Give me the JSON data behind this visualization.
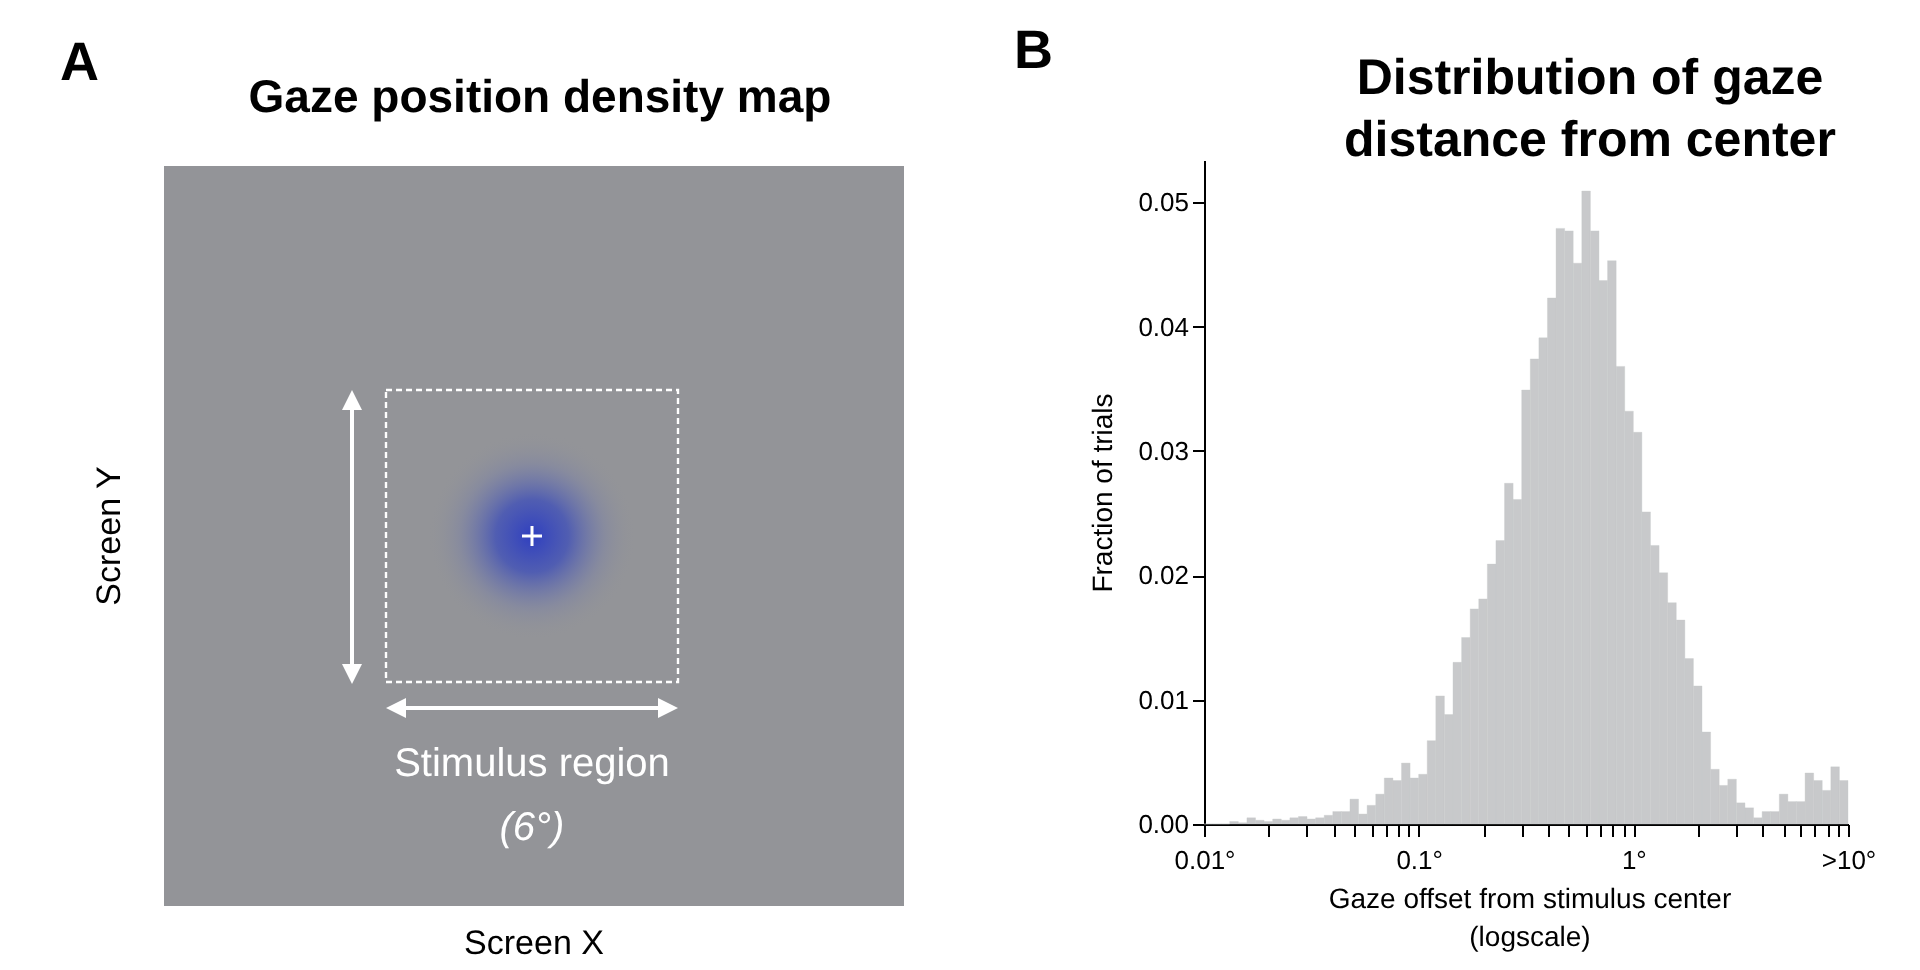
{
  "chart_data": [
    {
      "type": "other",
      "title": "Gaze position density map",
      "xlabel": "Screen X",
      "ylabel": "Screen Y",
      "annotations": [
        "A",
        "Stimulus region",
        "(6°)"
      ]
    },
    {
      "type": "histogram",
      "title": "Distribution of gaze distance from center",
      "xlabel": "Gaze offset from stimulus center (logscale)",
      "ylabel": "Fraction of trials",
      "annotations": [
        "B"
      ],
      "bins": [
        0.01,
        0.01096,
        0.01202,
        0.01318,
        0.01445,
        0.01585,
        0.01738,
        0.01905,
        0.02089,
        0.02291,
        0.02512,
        0.02754,
        0.0302,
        0.03311,
        0.03631,
        0.03981,
        0.04365,
        0.04786,
        0.05248,
        0.05754,
        0.0631,
        0.06918,
        0.07586,
        0.08318,
        0.0912,
        0.1,
        0.1096,
        0.1202,
        0.1318,
        0.1445,
        0.1585,
        0.1738,
        0.1905,
        0.2089,
        0.2291,
        0.2512,
        0.2754,
        0.302,
        0.3311,
        0.3631,
        0.3981,
        0.4365,
        0.4786,
        0.5248,
        0.5754,
        0.631,
        0.6918,
        0.7586,
        0.8318,
        0.912,
        1,
        1.096,
        1.202,
        1.318,
        1.445,
        1.585,
        1.738,
        1.905,
        2.089,
        2.291,
        2.512,
        2.754,
        3.02,
        3.311,
        3.631,
        3.981,
        4.365,
        4.786,
        5.248,
        5.754,
        6.31,
        6.918,
        7.586,
        8.318,
        9.12,
        10
      ],
      "values": [
        0,
        0,
        0,
        0.0002,
        0.0001,
        0.0005,
        0.0003,
        0.0002,
        0.0004,
        0.0003,
        0.0005,
        0.0006,
        0.0004,
        0.0005,
        0.0007,
        0.001,
        0.001,
        0.002,
        0.0008,
        0.0015,
        0.0024,
        0.0037,
        0.0035,
        0.0049,
        0.0037,
        0.004,
        0.0067,
        0.0103,
        0.0088,
        0.013,
        0.015,
        0.0173,
        0.0181,
        0.0209,
        0.0228,
        0.0274,
        0.0261,
        0.0349,
        0.0374,
        0.0391,
        0.0423,
        0.0479,
        0.0477,
        0.0451,
        0.0509,
        0.0477,
        0.0437,
        0.0453,
        0.0368,
        0.0332,
        0.0315,
        0.0251,
        0.0224,
        0.0202,
        0.0178,
        0.0164,
        0.0133,
        0.0111,
        0.0074,
        0.0044,
        0.0031,
        0.0036,
        0.0017,
        0.0013,
        0.0005,
        0.001,
        0.001,
        0.0024,
        0.0018,
        0.0018,
        0.0041,
        0.0035,
        0.0027,
        0.0046,
        0.0035
      ],
      "color": "#c8c9cb",
      "log": "x",
      "grid": false,
      "xlim": [
        0.01,
        10
      ],
      "ylim": [
        0,
        0.0534
      ],
      "xticks": [
        {
          "value": 0.01,
          "label": "0.01°"
        },
        {
          "value": 0.02,
          "label": null
        },
        {
          "value": 0.03,
          "label": null
        },
        {
          "value": 0.04,
          "label": null
        },
        {
          "value": 0.05,
          "label": null
        },
        {
          "value": 0.06,
          "label": null
        },
        {
          "value": 0.07,
          "label": null
        },
        {
          "value": 0.08,
          "label": null
        },
        {
          "value": 0.09,
          "label": null
        },
        {
          "value": 0.1,
          "label": "0.1°"
        },
        {
          "value": 0.2,
          "label": null
        },
        {
          "value": 0.3,
          "label": null
        },
        {
          "value": 0.4,
          "label": null
        },
        {
          "value": 0.5,
          "label": null
        },
        {
          "value": 0.6,
          "label": null
        },
        {
          "value": 0.7,
          "label": null
        },
        {
          "value": 0.8,
          "label": null
        },
        {
          "value": 0.9,
          "label": null
        },
        {
          "value": 1,
          "label": "1°"
        },
        {
          "value": 2,
          "label": null
        },
        {
          "value": 3,
          "label": null
        },
        {
          "value": 4,
          "label": null
        },
        {
          "value": 5,
          "label": null
        },
        {
          "value": 6,
          "label": null
        },
        {
          "value": 7,
          "label": null
        },
        {
          "value": 8,
          "label": null
        },
        {
          "value": 9,
          "label": null
        },
        {
          "value": 10,
          "label": ">10°"
        }
      ],
      "yticks": [
        {
          "value": 0,
          "label": "0.00"
        },
        {
          "value": 0.01,
          "label": "0.01"
        },
        {
          "value": 0.02,
          "label": "0.02"
        },
        {
          "value": 0.03,
          "label": "0.03"
        },
        {
          "value": 0.04,
          "label": "0.04"
        },
        {
          "value": 0.05,
          "label": "0.05"
        }
      ]
    }
  ]
}
